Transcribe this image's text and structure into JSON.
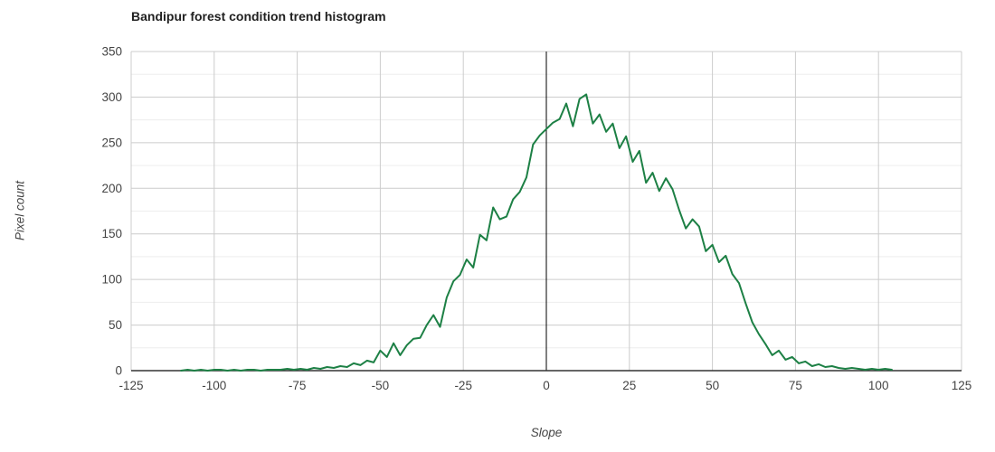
{
  "chart_data": {
    "type": "line",
    "title": "Bandipur forest condition trend histogram",
    "xlabel": "Slope",
    "ylabel": "Pixel count",
    "xlim": [
      -125,
      125
    ],
    "ylim": [
      0,
      350
    ],
    "x_ticks": [
      -125,
      -100,
      -75,
      -50,
      -25,
      0,
      25,
      50,
      75,
      100,
      125
    ],
    "y_ticks": [
      0,
      50,
      100,
      150,
      200,
      250,
      300,
      350
    ],
    "y_minor_ticks": [
      25,
      75,
      125,
      175,
      225,
      275,
      325
    ],
    "grid": true,
    "legend_position": "none",
    "colors": {
      "line": "#1d8045",
      "axis": "#333333",
      "zero_line": "#000000",
      "major_grid": "#cccccc",
      "minor_grid": "#ededed",
      "tick_label": "#444444",
      "title": "#212121"
    },
    "series": [
      {
        "name": "pixel count",
        "points": [
          [
            -110,
            0
          ],
          [
            -108,
            1
          ],
          [
            -106,
            0
          ],
          [
            -104,
            1
          ],
          [
            -102,
            0
          ],
          [
            -100,
            1
          ],
          [
            -98,
            1
          ],
          [
            -96,
            0
          ],
          [
            -94,
            1
          ],
          [
            -92,
            0
          ],
          [
            -90,
            1
          ],
          [
            -88,
            1
          ],
          [
            -86,
            0
          ],
          [
            -84,
            1
          ],
          [
            -82,
            1
          ],
          [
            -80,
            1
          ],
          [
            -78,
            2
          ],
          [
            -76,
            1
          ],
          [
            -74,
            2
          ],
          [
            -72,
            1
          ],
          [
            -70,
            3
          ],
          [
            -68,
            2
          ],
          [
            -66,
            4
          ],
          [
            -64,
            3
          ],
          [
            -62,
            5
          ],
          [
            -60,
            4
          ],
          [
            -58,
            8
          ],
          [
            -56,
            6
          ],
          [
            -54,
            11
          ],
          [
            -52,
            9
          ],
          [
            -50,
            22
          ],
          [
            -48,
            15
          ],
          [
            -46,
            30
          ],
          [
            -44,
            17
          ],
          [
            -42,
            28
          ],
          [
            -40,
            35
          ],
          [
            -38,
            36
          ],
          [
            -36,
            50
          ],
          [
            -34,
            61
          ],
          [
            -32,
            48
          ],
          [
            -30,
            80
          ],
          [
            -28,
            98
          ],
          [
            -26,
            105
          ],
          [
            -24,
            122
          ],
          [
            -22,
            113
          ],
          [
            -20,
            149
          ],
          [
            -18,
            143
          ],
          [
            -16,
            179
          ],
          [
            -14,
            166
          ],
          [
            -12,
            169
          ],
          [
            -10,
            188
          ],
          [
            -8,
            196
          ],
          [
            -6,
            212
          ],
          [
            -4,
            248
          ],
          [
            -2,
            258
          ],
          [
            0,
            265
          ],
          [
            2,
            272
          ],
          [
            4,
            276
          ],
          [
            6,
            293
          ],
          [
            8,
            268
          ],
          [
            10,
            298
          ],
          [
            12,
            303
          ],
          [
            14,
            271
          ],
          [
            16,
            281
          ],
          [
            18,
            262
          ],
          [
            20,
            271
          ],
          [
            22,
            244
          ],
          [
            24,
            257
          ],
          [
            26,
            229
          ],
          [
            28,
            241
          ],
          [
            30,
            206
          ],
          [
            32,
            217
          ],
          [
            34,
            197
          ],
          [
            36,
            211
          ],
          [
            38,
            199
          ],
          [
            40,
            176
          ],
          [
            42,
            156
          ],
          [
            44,
            166
          ],
          [
            46,
            158
          ],
          [
            48,
            131
          ],
          [
            50,
            138
          ],
          [
            52,
            119
          ],
          [
            54,
            126
          ],
          [
            56,
            106
          ],
          [
            58,
            96
          ],
          [
            60,
            74
          ],
          [
            62,
            53
          ],
          [
            64,
            40
          ],
          [
            66,
            29
          ],
          [
            68,
            17
          ],
          [
            70,
            22
          ],
          [
            72,
            12
          ],
          [
            74,
            15
          ],
          [
            76,
            8
          ],
          [
            78,
            10
          ],
          [
            80,
            5
          ],
          [
            82,
            7
          ],
          [
            84,
            4
          ],
          [
            86,
            5
          ],
          [
            88,
            3
          ],
          [
            90,
            2
          ],
          [
            92,
            3
          ],
          [
            94,
            2
          ],
          [
            96,
            1
          ],
          [
            98,
            2
          ],
          [
            100,
            1
          ],
          [
            102,
            2
          ],
          [
            104,
            1
          ]
        ]
      }
    ]
  }
}
